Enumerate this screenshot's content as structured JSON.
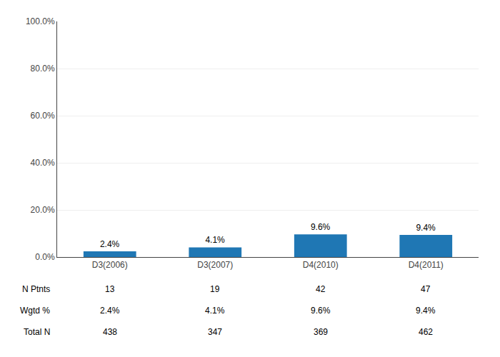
{
  "chart_data": {
    "type": "bar",
    "categories": [
      "D3(2006)",
      "D3(2007)",
      "D4(2010)",
      "D4(2011)"
    ],
    "values": [
      2.4,
      4.1,
      9.6,
      9.4
    ],
    "value_labels": [
      "2.4%",
      "4.1%",
      "9.6%",
      "9.4%"
    ],
    "data_labels": true,
    "ylim": [
      0,
      100
    ],
    "yticks": [
      {
        "value": 0,
        "label": "0.0%"
      },
      {
        "value": 20,
        "label": "20.0%"
      },
      {
        "value": 40,
        "label": "40.0%"
      },
      {
        "value": 60,
        "label": "60.0%"
      },
      {
        "value": 80,
        "label": "80.0%"
      },
      {
        "value": 100,
        "label": "100.0%"
      }
    ],
    "grid": true,
    "table": {
      "row_labels": [
        "N Ptnts",
        "Wgtd %",
        "Total N"
      ],
      "rows": [
        [
          "13",
          "19",
          "42",
          "47"
        ],
        [
          "2.4%",
          "4.1%",
          "9.6%",
          "9.4%"
        ],
        [
          "438",
          "347",
          "369",
          "462"
        ]
      ]
    }
  }
}
